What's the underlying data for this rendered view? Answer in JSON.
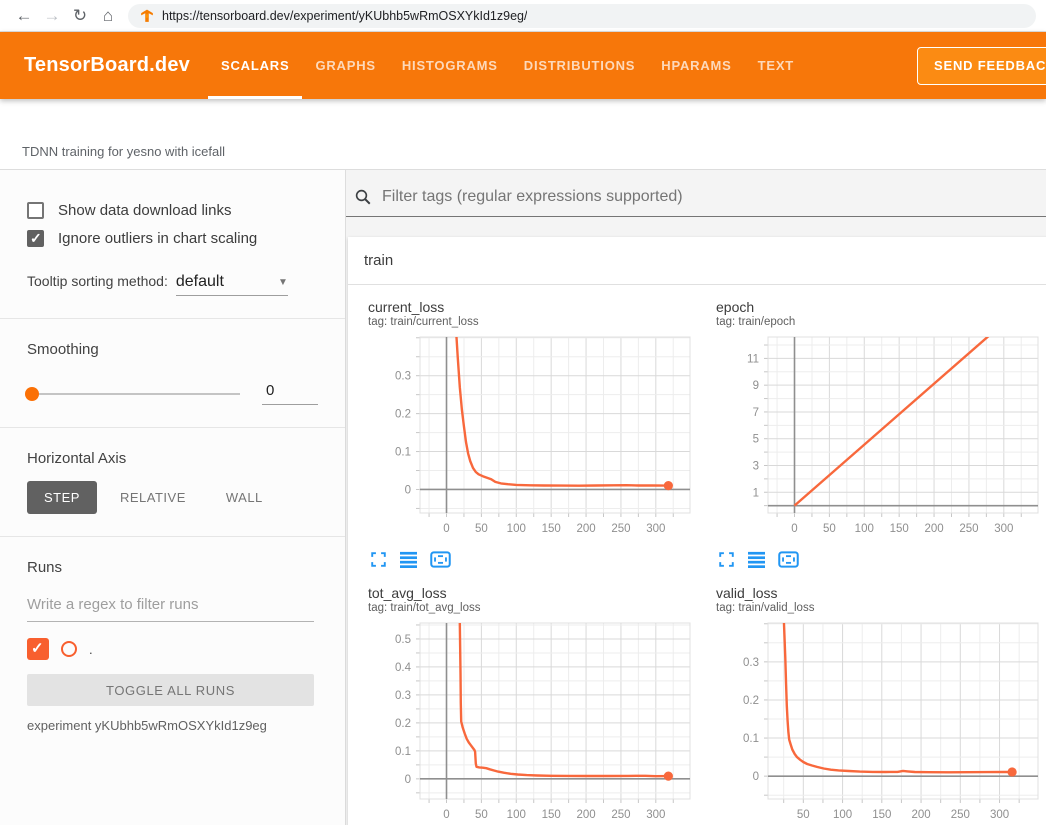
{
  "browser": {
    "url": "https://tensorboard.dev/experiment/yKUbhb5wRmOSXYkId1z9eg/",
    "icons": [
      "back-icon",
      "forward-icon",
      "reload-icon",
      "home-icon",
      "tensorboard-favicon"
    ]
  },
  "header": {
    "logo": "TensorBoard.dev",
    "tabs": [
      {
        "label": "SCALARS",
        "active": true
      },
      {
        "label": "GRAPHS",
        "active": false
      },
      {
        "label": "HISTOGRAMS",
        "active": false
      },
      {
        "label": "DISTRIBUTIONS",
        "active": false
      },
      {
        "label": "HPARAMS",
        "active": false
      },
      {
        "label": "TEXT",
        "active": false
      }
    ],
    "feedback_label": "SEND FEEDBACK"
  },
  "experiment_title": "TDNN training for yesno with icefall",
  "sidebar": {
    "checkboxes": [
      {
        "label": "Show data download links",
        "checked": false
      },
      {
        "label": "Ignore outliers in chart scaling",
        "checked": true
      }
    ],
    "tooltip_sorting": {
      "label": "Tooltip sorting method:",
      "value": "default"
    },
    "smoothing": {
      "label": "Smoothing",
      "value": "0"
    },
    "horizontal_axis": {
      "label": "Horizontal Axis",
      "options": [
        {
          "label": "STEP",
          "active": true
        },
        {
          "label": "RELATIVE",
          "active": false
        },
        {
          "label": "WALL",
          "active": false
        }
      ]
    },
    "runs": {
      "label": "Runs",
      "filter_placeholder": "Write a regex to filter runs",
      "items": [
        {
          "name": ".",
          "checked": true
        }
      ],
      "toggle_button": "TOGGLE ALL RUNS",
      "experiment_label": "experiment yKUbhb5wRmOSXYkId1z9eg"
    }
  },
  "main": {
    "filter_placeholder": "Filter tags (regular expressions supported)",
    "group_label": "train"
  },
  "colors": {
    "header_orange": "#f7770a",
    "run_accent": "#f85f2e",
    "line": "#f8683c",
    "icon_blue": "#2196f3",
    "grid_major": "#d9d9d9",
    "grid_minor": "#ededed",
    "axis_zero": "#8f8f8f",
    "tick_label": "#8f8f8f"
  },
  "chart_toolbar_icons": [
    "expand-icon",
    "data-lines-icon",
    "fit-domain-icon"
  ],
  "chart_data": [
    {
      "type": "line",
      "name": "current_loss",
      "title": "current_loss",
      "tag": "tag: train/current_loss",
      "series": ".",
      "xlabel": "step",
      "xlim": [
        -38,
        349
      ],
      "ylim": [
        -0.062,
        0.402
      ],
      "x_minor": 25,
      "x_majors": [
        0,
        50,
        100,
        150,
        200,
        250,
        300
      ],
      "x_labels": [
        0,
        50,
        100,
        150,
        200,
        250,
        300
      ],
      "y_minor": 0.05,
      "y_majors": [
        0,
        0.1,
        0.2,
        0.3
      ],
      "y_labels": [
        0,
        0.1,
        0.2,
        0.3
      ],
      "zero_x": true,
      "zero_y": true,
      "points": [
        [
          13,
          0.44
        ],
        [
          16,
          0.35
        ],
        [
          19,
          0.27
        ],
        [
          22,
          0.21
        ],
        [
          25,
          0.165
        ],
        [
          28,
          0.125
        ],
        [
          31,
          0.095
        ],
        [
          34,
          0.075
        ],
        [
          38,
          0.057
        ],
        [
          42,
          0.046
        ],
        [
          46,
          0.04
        ],
        [
          52,
          0.035
        ],
        [
          58,
          0.031
        ],
        [
          64,
          0.027
        ],
        [
          70,
          0.02
        ],
        [
          78,
          0.016
        ],
        [
          88,
          0.014
        ],
        [
          100,
          0.012
        ],
        [
          120,
          0.011
        ],
        [
          140,
          0.0105
        ],
        [
          165,
          0.0103
        ],
        [
          190,
          0.0101
        ],
        [
          215,
          0.0104
        ],
        [
          240,
          0.0109
        ],
        [
          258,
          0.0112
        ],
        [
          275,
          0.0106
        ],
        [
          295,
          0.0104
        ],
        [
          310,
          0.0102
        ],
        [
          318,
          0.0101
        ]
      ],
      "end_dot": [
        318,
        0.0101
      ]
    },
    {
      "type": "line",
      "name": "epoch",
      "title": "epoch",
      "tag": "tag: train/epoch",
      "series": ".",
      "xlabel": "step",
      "xlim": [
        -38,
        349
      ],
      "ylim": [
        -0.55,
        12.6
      ],
      "x_minor": 25,
      "x_majors": [
        0,
        50,
        100,
        150,
        200,
        250,
        300
      ],
      "x_labels": [
        0,
        50,
        100,
        150,
        200,
        250,
        300
      ],
      "y_minor": 1,
      "y_majors": [
        1,
        3,
        5,
        7,
        9,
        11
      ],
      "y_labels": [
        1,
        3,
        5,
        7,
        9,
        11
      ],
      "zero_x": true,
      "zero_y": true,
      "points": [
        [
          0,
          0
        ],
        [
          282,
          12.85
        ]
      ],
      "end_dot": null
    },
    {
      "type": "line",
      "name": "tot_avg_loss",
      "title": "tot_avg_loss",
      "tag": "tag: train/tot_avg_loss",
      "series": ".",
      "xlabel": "step",
      "xlim": [
        -38,
        349
      ],
      "ylim": [
        -0.072,
        0.557
      ],
      "x_minor": 25,
      "x_majors": [
        0,
        50,
        100,
        150,
        200,
        250,
        300
      ],
      "x_labels": [
        0,
        50,
        100,
        150,
        200,
        250,
        300
      ],
      "y_minor": 0.05,
      "y_majors": [
        0,
        0.1,
        0.2,
        0.3,
        0.4,
        0.5
      ],
      "y_labels": [
        0,
        0.1,
        0.2,
        0.3,
        0.4,
        0.5
      ],
      "zero_x": true,
      "zero_y": true,
      "points": [
        [
          19,
          0.56
        ],
        [
          20,
          0.38
        ],
        [
          20.5,
          0.27
        ],
        [
          21,
          0.205
        ],
        [
          23,
          0.185
        ],
        [
          26,
          0.162
        ],
        [
          29,
          0.143
        ],
        [
          32,
          0.13
        ],
        [
          35,
          0.12
        ],
        [
          38,
          0.11
        ],
        [
          40,
          0.103
        ],
        [
          41,
          0.097
        ],
        [
          42,
          0.055
        ],
        [
          43,
          0.043
        ],
        [
          47,
          0.041
        ],
        [
          52,
          0.04
        ],
        [
          57,
          0.038
        ],
        [
          62,
          0.034
        ],
        [
          68,
          0.03
        ],
        [
          74,
          0.026
        ],
        [
          82,
          0.022
        ],
        [
          92,
          0.018
        ],
        [
          102,
          0.0155
        ],
        [
          115,
          0.0135
        ],
        [
          130,
          0.012
        ],
        [
          150,
          0.011
        ],
        [
          175,
          0.0105
        ],
        [
          200,
          0.0102
        ],
        [
          230,
          0.0103
        ],
        [
          260,
          0.0106
        ],
        [
          285,
          0.0108
        ],
        [
          300,
          0.0095
        ],
        [
          318,
          0.0098
        ]
      ],
      "end_dot": [
        318,
        0.0098
      ]
    },
    {
      "type": "line",
      "name": "valid_loss",
      "title": "valid_loss",
      "tag": "tag: train/valid_loss",
      "series": ".",
      "xlabel": "step",
      "xlim": [
        5,
        349
      ],
      "ylim": [
        -0.06,
        0.402
      ],
      "x_minor": 25,
      "x_majors": [
        50,
        100,
        150,
        200,
        250,
        300
      ],
      "x_labels": [
        50,
        100,
        150,
        200,
        250,
        300
      ],
      "y_minor": 0.05,
      "y_majors": [
        0,
        0.1,
        0.2,
        0.3
      ],
      "y_labels": [
        0,
        0.1,
        0.2,
        0.3
      ],
      "zero_x": false,
      "zero_y": true,
      "points": [
        [
          25,
          0.42
        ],
        [
          27,
          0.31
        ],
        [
          28,
          0.24
        ],
        [
          29,
          0.185
        ],
        [
          30,
          0.145
        ],
        [
          31,
          0.115
        ],
        [
          32,
          0.096
        ],
        [
          34,
          0.082
        ],
        [
          36,
          0.07
        ],
        [
          39,
          0.058
        ],
        [
          42,
          0.05
        ],
        [
          46,
          0.043
        ],
        [
          50,
          0.037
        ],
        [
          55,
          0.032
        ],
        [
          61,
          0.028
        ],
        [
          68,
          0.024
        ],
        [
          76,
          0.02
        ],
        [
          85,
          0.017
        ],
        [
          95,
          0.015
        ],
        [
          108,
          0.0135
        ],
        [
          122,
          0.012
        ],
        [
          138,
          0.0112
        ],
        [
          155,
          0.0108
        ],
        [
          170,
          0.0112
        ],
        [
          177,
          0.0138
        ],
        [
          183,
          0.0125
        ],
        [
          192,
          0.0108
        ],
        [
          210,
          0.0103
        ],
        [
          235,
          0.0102
        ],
        [
          260,
          0.0104
        ],
        [
          285,
          0.0106
        ],
        [
          305,
          0.0108
        ],
        [
          316,
          0.011
        ]
      ],
      "end_dot": [
        316,
        0.011
      ]
    }
  ]
}
